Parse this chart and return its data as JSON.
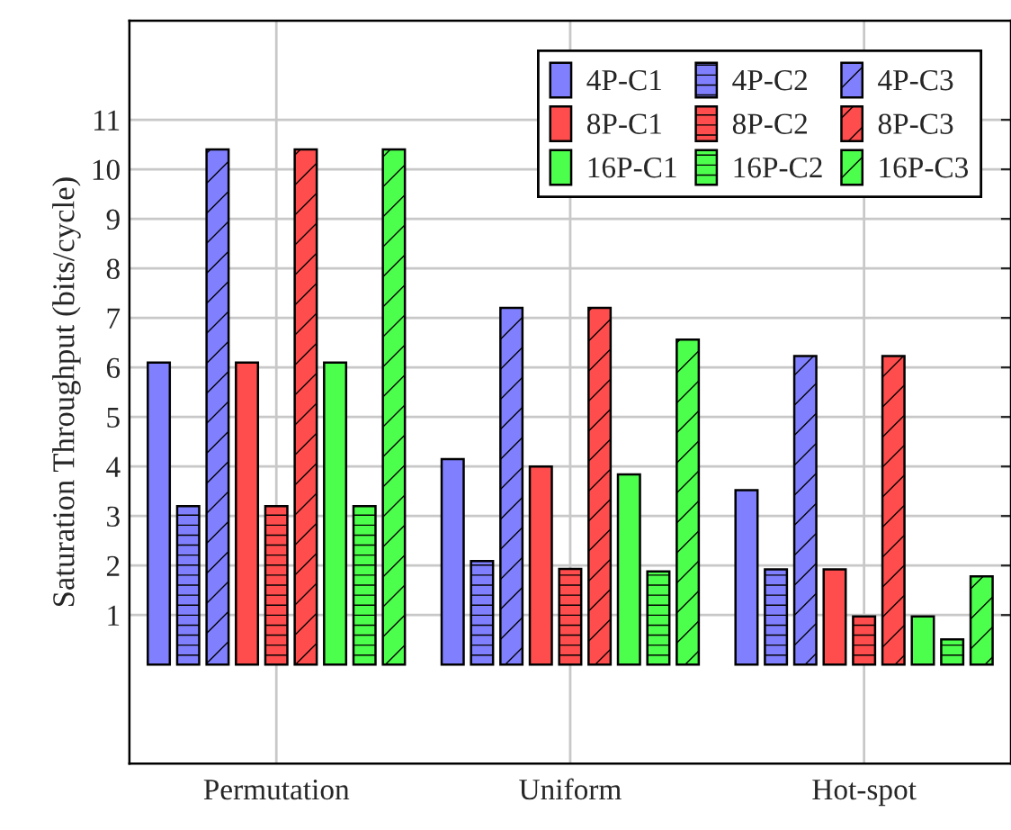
{
  "chart_data": {
    "type": "bar",
    "ylabel": "Saturation Throughput (bits/cycle)",
    "categories": [
      "Permutation",
      "Uniform",
      "Hot-spot"
    ],
    "series": [
      {
        "name": "4P-C1",
        "color": "#8080ff",
        "values": [
          6.1,
          4.15,
          3.52
        ]
      },
      {
        "name": "4P-C2",
        "color": "#8080ff",
        "values": [
          3.2,
          2.09,
          1.92
        ]
      },
      {
        "name": "4P-C3",
        "color": "#8080ff",
        "values": [
          10.4,
          7.2,
          6.23
        ]
      },
      {
        "name": "8P-C1",
        "color": "#ff4d4d",
        "values": [
          6.1,
          4.0,
          1.92
        ]
      },
      {
        "name": "8P-C2",
        "color": "#ff4d4d",
        "values": [
          3.2,
          1.93,
          0.97
        ]
      },
      {
        "name": "8P-C3",
        "color": "#ff4d4d",
        "values": [
          10.4,
          7.2,
          6.23
        ]
      },
      {
        "name": "16P-C1",
        "color": "#4dff4d",
        "values": [
          6.1,
          3.84,
          0.97
        ]
      },
      {
        "name": "16P-C2",
        "color": "#4dff4d",
        "values": [
          3.2,
          1.88,
          0.51
        ]
      },
      {
        "name": "16P-C3",
        "color": "#4dff4d",
        "values": [
          10.4,
          6.56,
          1.78
        ]
      }
    ],
    "ylim": [
      -2,
      13
    ],
    "yticks": [
      1,
      2,
      3,
      4,
      5,
      6,
      7,
      8,
      9,
      10,
      11
    ],
    "grid": true,
    "legend": "top right"
  }
}
